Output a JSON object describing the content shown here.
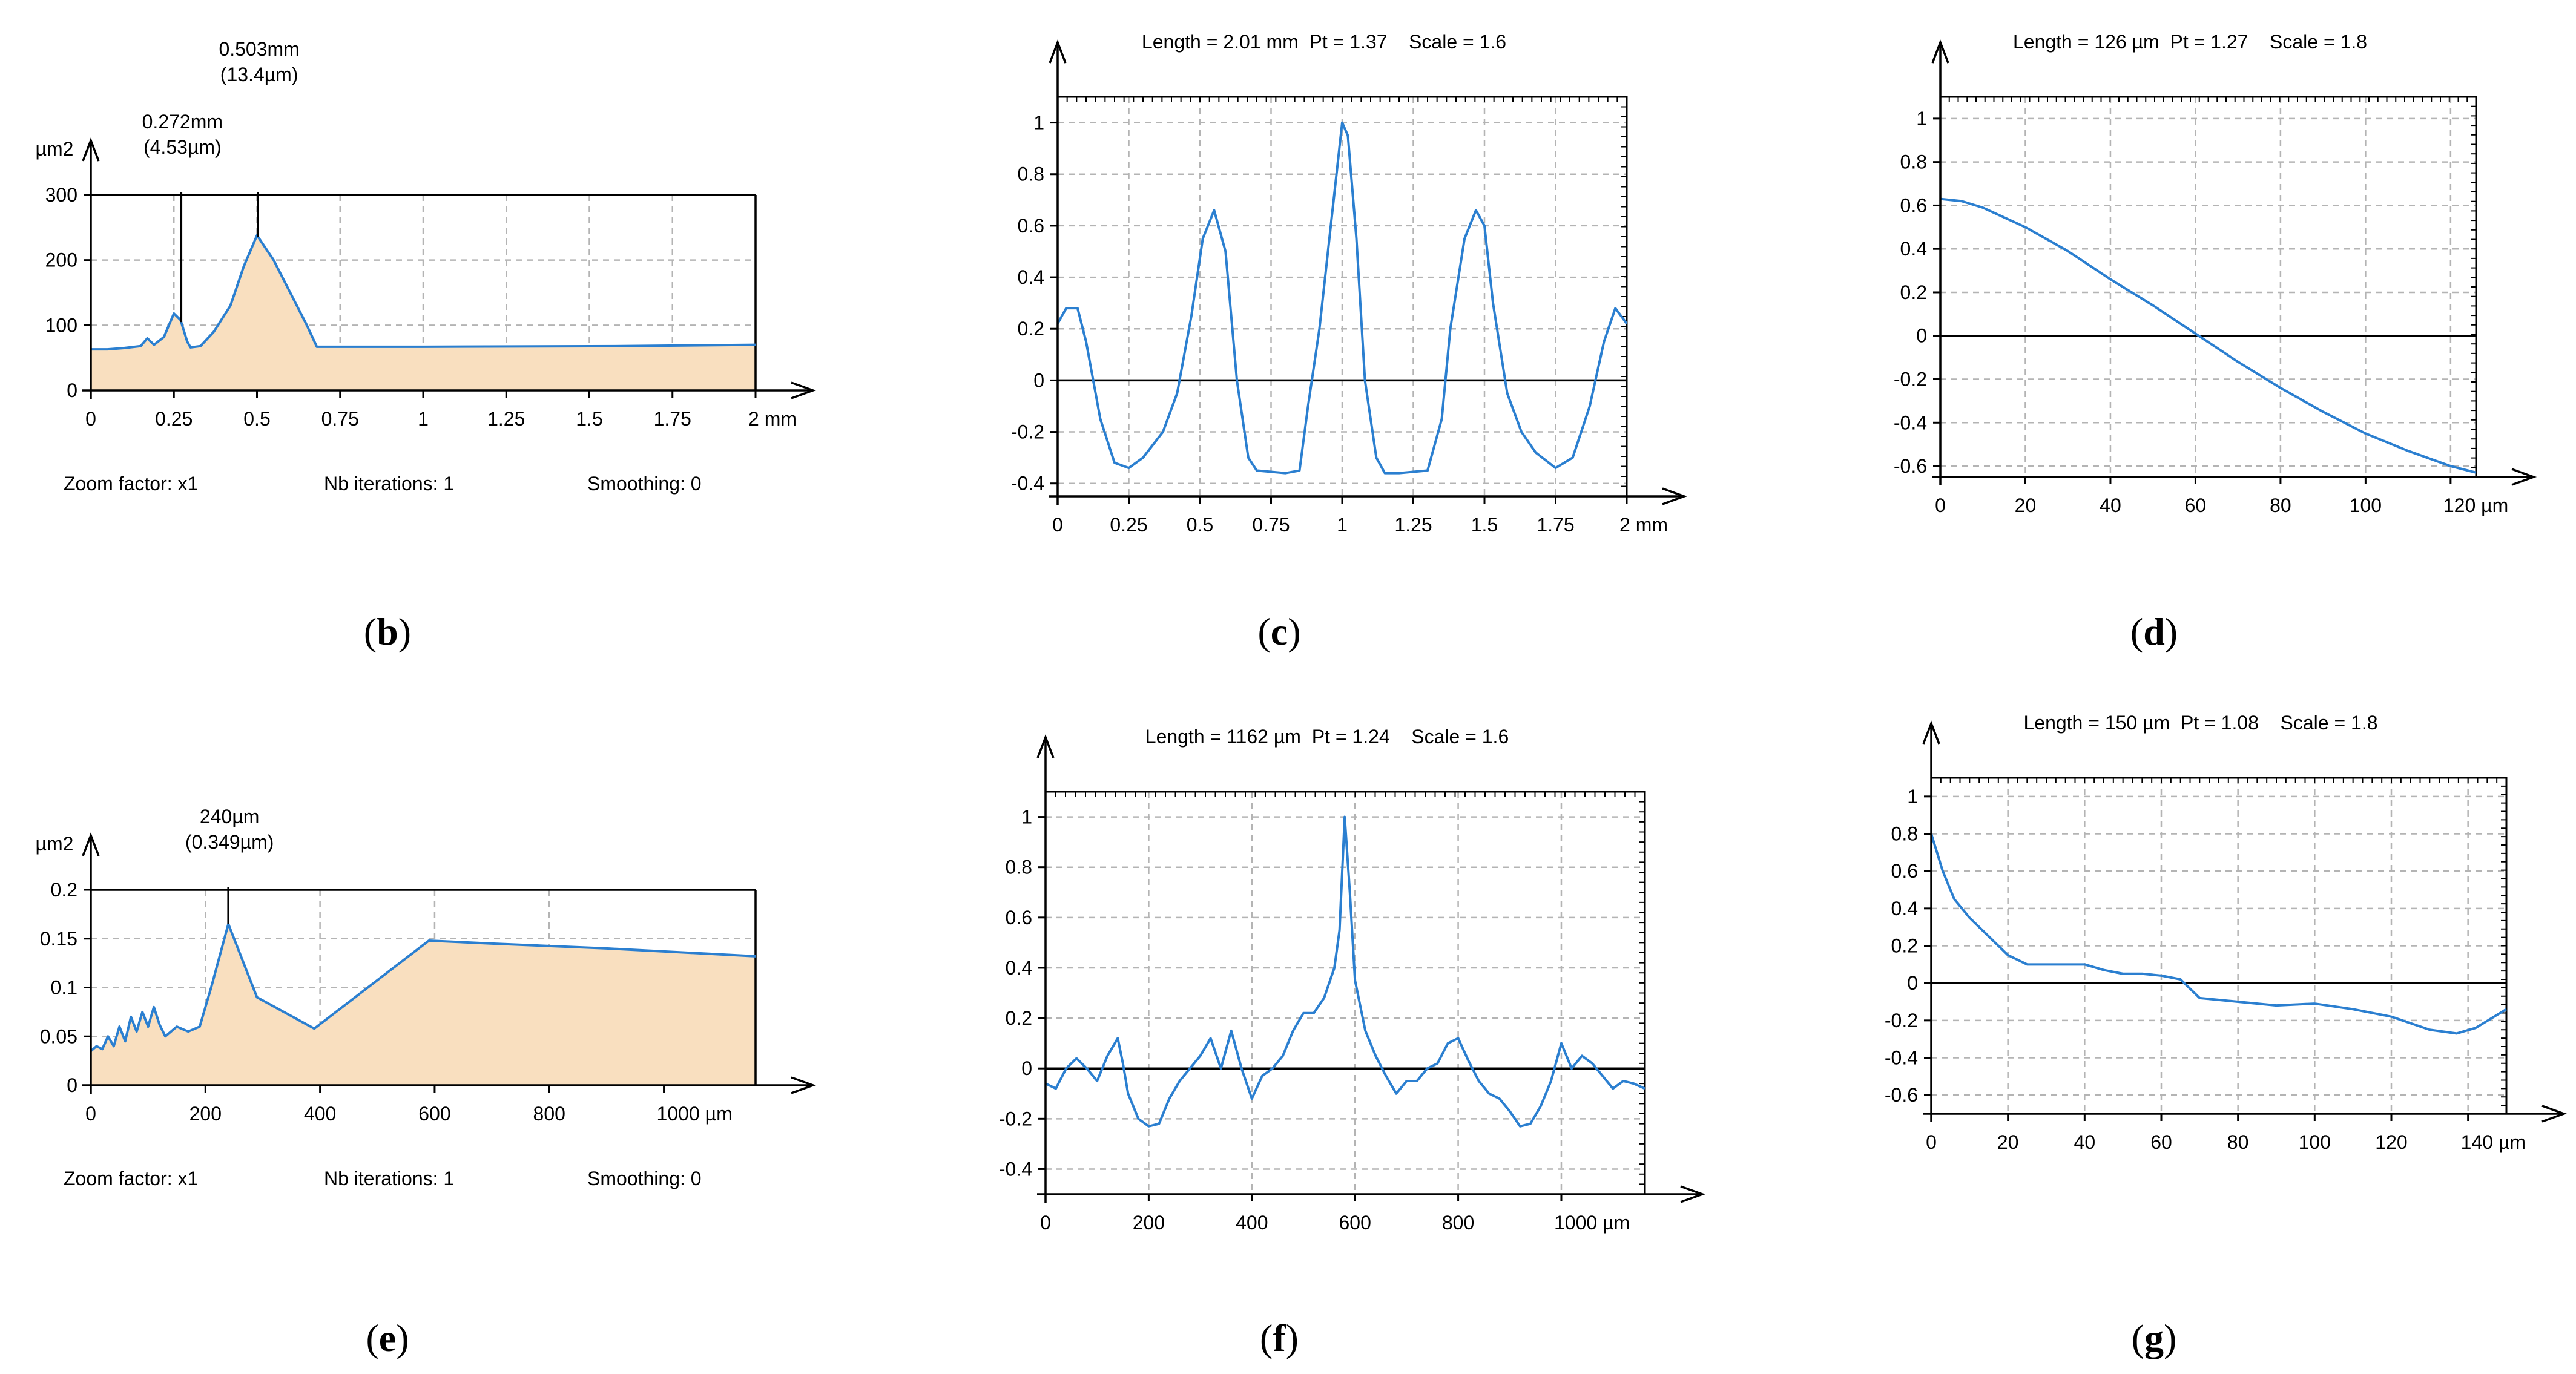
{
  "colors": {
    "line": "#2b7fd0",
    "fill": "#f9dfbf",
    "axis": "#000000",
    "grid": "#b4b4b4"
  },
  "chart_data": [
    {
      "id": "b",
      "type": "area",
      "panel_label": "(b)",
      "ylabel": "µm2",
      "xunit": "mm",
      "xlim": [
        0,
        2
      ],
      "ylim": [
        0,
        300
      ],
      "xticks": [
        0,
        0.25,
        0.5,
        0.75,
        1,
        1.25,
        1.5,
        1.75,
        2
      ],
      "xtick_labels": [
        "0",
        "0.25",
        "0.5",
        "0.75",
        "1",
        "1.25",
        "1.5",
        "1.75",
        "2 mm"
      ],
      "yticks": [
        0,
        100,
        200,
        300
      ],
      "ytick_labels": [
        "0",
        "100",
        "200",
        "300"
      ],
      "x": [
        0,
        0.05,
        0.1,
        0.15,
        0.17,
        0.19,
        0.22,
        0.25,
        0.27,
        0.29,
        0.3,
        0.33,
        0.37,
        0.42,
        0.46,
        0.5,
        0.55,
        0.6,
        0.65,
        0.68,
        1.0,
        1.6,
        2.0
      ],
      "y": [
        63,
        63,
        65,
        68,
        80,
        70,
        82,
        118,
        108,
        75,
        66,
        68,
        90,
        130,
        190,
        238,
        200,
        150,
        100,
        67,
        67,
        68,
        70
      ],
      "markers": [
        {
          "x": 0.272,
          "label1": "0.272mm",
          "label2": "(4.53µm)"
        },
        {
          "x": 0.503,
          "label1": "0.503mm",
          "label2": "(13.4µm)"
        }
      ],
      "footer": [
        "Zoom factor: x1",
        "Nb iterations: 1",
        "Smoothing: 0"
      ]
    },
    {
      "id": "c",
      "type": "line",
      "panel_label": "(c)",
      "header": "Length = 2.01 mm  Pt = 1.37    Scale = 1.6",
      "xunit": "mm",
      "xlim": [
        0,
        2
      ],
      "ylim": [
        -0.45,
        1.1
      ],
      "xticks": [
        0,
        0.25,
        0.5,
        0.75,
        1,
        1.25,
        1.5,
        1.75,
        2
      ],
      "xtick_labels": [
        "0",
        "0.25",
        "0.5",
        "0.75",
        "1",
        "1.25",
        "1.5",
        "1.75",
        "2 mm"
      ],
      "yticks": [
        -0.4,
        -0.2,
        0,
        0.2,
        0.4,
        0.6,
        0.8,
        1
      ],
      "ytick_labels": [
        "-0.4",
        "-0.2",
        "0",
        "0.2",
        "0.4",
        "0.6",
        "0.8",
        "1"
      ],
      "x": [
        0,
        0.03,
        0.07,
        0.1,
        0.15,
        0.2,
        0.25,
        0.3,
        0.37,
        0.42,
        0.47,
        0.51,
        0.55,
        0.59,
        0.63,
        0.67,
        0.7,
        0.8,
        0.85,
        0.88,
        0.92,
        0.96,
        1.0,
        1.02,
        1.05,
        1.08,
        1.12,
        1.15,
        1.2,
        1.3,
        1.35,
        1.38,
        1.43,
        1.47,
        1.5,
        1.53,
        1.58,
        1.63,
        1.68,
        1.75,
        1.81,
        1.87,
        1.92,
        1.96,
        2.0
      ],
      "y": [
        0.22,
        0.28,
        0.28,
        0.15,
        -0.15,
        -0.32,
        -0.34,
        -0.3,
        -0.2,
        -0.05,
        0.25,
        0.55,
        0.66,
        0.5,
        0.0,
        -0.3,
        -0.35,
        -0.36,
        -0.35,
        -0.1,
        0.2,
        0.6,
        1.0,
        0.95,
        0.55,
        0.0,
        -0.3,
        -0.36,
        -0.36,
        -0.35,
        -0.15,
        0.2,
        0.55,
        0.66,
        0.6,
        0.3,
        -0.05,
        -0.2,
        -0.28,
        -0.34,
        -0.3,
        -0.1,
        0.15,
        0.28,
        0.22
      ]
    },
    {
      "id": "d",
      "type": "line",
      "panel_label": "(d)",
      "header": "Length = 126 µm  Pt = 1.27    Scale = 1.8",
      "xunit": "µm",
      "xlim": [
        0,
        126
      ],
      "ylim": [
        -0.65,
        1.1
      ],
      "xticks": [
        0,
        20,
        40,
        60,
        80,
        100,
        120
      ],
      "xtick_labels": [
        "0",
        "20",
        "40",
        "60",
        "80",
        "100",
        "120 µm"
      ],
      "yticks": [
        -0.6,
        -0.4,
        -0.2,
        0,
        0.2,
        0.4,
        0.6,
        0.8,
        1
      ],
      "ytick_labels": [
        "-0.6",
        "-0.4",
        "-0.2",
        "0",
        "0.2",
        "0.4",
        "0.6",
        "0.8",
        "1"
      ],
      "x": [
        0,
        5,
        10,
        20,
        30,
        40,
        50,
        60,
        70,
        80,
        90,
        100,
        110,
        120,
        126
      ],
      "y": [
        0.63,
        0.62,
        0.59,
        0.5,
        0.39,
        0.26,
        0.14,
        0.01,
        -0.12,
        -0.24,
        -0.35,
        -0.45,
        -0.53,
        -0.6,
        -0.63
      ]
    },
    {
      "id": "e",
      "type": "area",
      "panel_label": "(e)",
      "ylabel": "µm2",
      "xunit": "µm",
      "xlim": [
        0,
        1160
      ],
      "ylim": [
        0,
        0.2
      ],
      "xticks": [
        0,
        200,
        400,
        600,
        800,
        1000
      ],
      "xtick_labels": [
        "0",
        "200",
        "400",
        "600",
        "800",
        "1000 µm"
      ],
      "yticks": [
        0,
        0.05,
        0.1,
        0.15,
        0.2
      ],
      "ytick_labels": [
        "0",
        "0.05",
        "0.1",
        "0.15",
        "0.2"
      ],
      "x": [
        0,
        10,
        20,
        30,
        40,
        50,
        60,
        70,
        80,
        90,
        100,
        110,
        120,
        130,
        150,
        170,
        190,
        210,
        240,
        290,
        390,
        590,
        700,
        900,
        1160
      ],
      "y": [
        0.035,
        0.04,
        0.037,
        0.05,
        0.04,
        0.06,
        0.045,
        0.07,
        0.055,
        0.075,
        0.06,
        0.08,
        0.062,
        0.05,
        0.06,
        0.055,
        0.06,
        0.1,
        0.165,
        0.09,
        0.058,
        0.148,
        0.145,
        0.14,
        0.132
      ],
      "markers": [
        {
          "x": 240,
          "label1": "240µm",
          "label2": "(0.349µm)"
        }
      ],
      "footer": [
        "Zoom factor: x1",
        "Nb iterations: 1",
        "Smoothing: 0"
      ]
    },
    {
      "id": "f",
      "type": "line",
      "panel_label": "(f)",
      "header": "Length = 1162 µm  Pt = 1.24    Scale = 1.6",
      "xunit": "µm",
      "xlim": [
        0,
        1162
      ],
      "ylim": [
        -0.5,
        1.1
      ],
      "xticks": [
        0,
        200,
        400,
        600,
        800,
        1000
      ],
      "xtick_labels": [
        "0",
        "200",
        "400",
        "600",
        "800",
        "1000 µm"
      ],
      "yticks": [
        -0.4,
        -0.2,
        0,
        0.2,
        0.4,
        0.6,
        0.8,
        1
      ],
      "ytick_labels": [
        "-0.4",
        "-0.2",
        "0",
        "0.2",
        "0.4",
        "0.6",
        "0.8",
        "1"
      ],
      "x": [
        0,
        20,
        40,
        60,
        80,
        100,
        120,
        140,
        150,
        160,
        180,
        200,
        220,
        240,
        260,
        280,
        300,
        320,
        340,
        360,
        380,
        400,
        420,
        440,
        460,
        480,
        500,
        520,
        540,
        560,
        570,
        580,
        590,
        600,
        610,
        620,
        640,
        660,
        680,
        700,
        720,
        740,
        760,
        780,
        800,
        820,
        840,
        860,
        880,
        900,
        920,
        940,
        960,
        980,
        1000,
        1020,
        1040,
        1060,
        1080,
        1100,
        1120,
        1140,
        1162
      ],
      "y": [
        -0.06,
        -0.08,
        0.0,
        0.04,
        0.0,
        -0.05,
        0.05,
        0.12,
        0.02,
        -0.1,
        -0.2,
        -0.23,
        -0.22,
        -0.12,
        -0.05,
        0.0,
        0.05,
        0.12,
        0.0,
        0.15,
        0.0,
        -0.12,
        -0.03,
        0.0,
        0.05,
        0.15,
        0.22,
        0.22,
        0.28,
        0.4,
        0.55,
        1.0,
        0.7,
        0.35,
        0.25,
        0.15,
        0.05,
        -0.03,
        -0.1,
        -0.05,
        -0.05,
        0.0,
        0.02,
        0.1,
        0.12,
        0.03,
        -0.05,
        -0.1,
        -0.12,
        -0.17,
        -0.23,
        -0.22,
        -0.15,
        -0.05,
        0.1,
        0.0,
        0.05,
        0.02,
        -0.03,
        -0.08,
        -0.05,
        -0.06,
        -0.08
      ]
    },
    {
      "id": "g",
      "type": "line",
      "panel_label": "(g)",
      "header": "Length = 150 µm  Pt = 1.08    Scale = 1.8",
      "xunit": "µm",
      "xlim": [
        0,
        150
      ],
      "ylim": [
        -0.7,
        1.1
      ],
      "xticks": [
        0,
        20,
        40,
        60,
        80,
        100,
        120,
        140
      ],
      "xtick_labels": [
        "0",
        "20",
        "40",
        "60",
        "80",
        "100",
        "120",
        "140 µm"
      ],
      "yticks": [
        -0.6,
        -0.4,
        -0.2,
        0,
        0.2,
        0.4,
        0.6,
        0.8,
        1
      ],
      "ytick_labels": [
        "-0.6",
        "-0.4",
        "-0.2",
        "0",
        "0.2",
        "0.4",
        "0.6",
        "0.8",
        "1"
      ],
      "x": [
        0,
        3,
        6,
        10,
        15,
        20,
        25,
        30,
        40,
        45,
        50,
        55,
        60,
        65,
        70,
        80,
        90,
        100,
        110,
        120,
        130,
        137,
        142,
        150
      ],
      "y": [
        0.8,
        0.6,
        0.45,
        0.35,
        0.25,
        0.15,
        0.1,
        0.1,
        0.1,
        0.07,
        0.05,
        0.05,
        0.04,
        0.02,
        -0.08,
        -0.1,
        -0.12,
        -0.11,
        -0.14,
        -0.18,
        -0.25,
        -0.27,
        -0.24,
        -0.14
      ]
    }
  ]
}
